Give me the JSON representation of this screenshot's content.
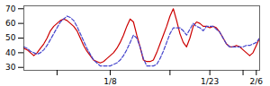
{
  "chart_data": {
    "type": "line",
    "x": [
      0,
      1,
      2,
      3,
      4,
      5,
      6,
      7,
      8,
      9,
      10,
      11,
      12,
      13,
      14,
      15,
      16,
      17,
      18,
      19,
      20,
      21,
      22,
      23,
      24,
      25,
      26,
      27,
      28,
      29,
      30,
      31,
      32,
      33,
      34,
      35,
      36,
      37,
      38,
      39,
      40,
      41,
      42,
      43,
      44,
      45,
      46,
      47,
      48,
      49,
      50,
      51,
      52,
      53,
      54,
      55,
      56,
      57,
      58,
      59,
      60,
      61,
      62,
      63,
      64,
      65,
      66,
      67,
      68,
      69,
      70,
      71
    ],
    "series": [
      {
        "color": "#cc0000",
        "line_style": "solid",
        "values": [
          43,
          42,
          40,
          38,
          40,
          43,
          46,
          50,
          55,
          58,
          60,
          62,
          63,
          62,
          60,
          58,
          55,
          50,
          45,
          41,
          38,
          35,
          34,
          33,
          34,
          36,
          38,
          40,
          43,
          47,
          52,
          58,
          63,
          61,
          52,
          44,
          35,
          34,
          34,
          35,
          40,
          46,
          52,
          58,
          65,
          70,
          62,
          53,
          47,
          44,
          50,
          58,
          61,
          60,
          58,
          58,
          57,
          58,
          57,
          54,
          50,
          46,
          44,
          44,
          45,
          44,
          42,
          40,
          38,
          40,
          45,
          50
        ]
      },
      {
        "color": "#4444cc",
        "line_style": "dashed",
        "values": [
          44,
          43,
          41,
          40,
          39,
          40,
          42,
          45,
          49,
          53,
          57,
          61,
          63,
          65,
          64,
          62,
          58,
          53,
          48,
          43,
          39,
          35,
          33,
          31,
          31,
          31,
          31,
          32,
          33,
          35,
          38,
          42,
          47,
          52,
          50,
          44,
          36,
          31,
          31,
          31,
          32,
          36,
          41,
          47,
          53,
          57,
          57,
          57,
          55,
          52,
          56,
          60,
          58,
          57,
          55,
          58,
          58,
          58,
          56,
          54,
          50,
          46,
          44,
          44,
          44,
          44,
          44,
          45,
          45,
          46,
          47,
          50
        ]
      }
    ],
    "xlim": [
      0,
      71
    ],
    "xticks": [
      {
        "value": 10,
        "label": null
      },
      {
        "value": 26,
        "label": "1/8"
      },
      {
        "value": 44,
        "label": null
      },
      {
        "value": 56,
        "label": "1/23"
      },
      {
        "value": 66,
        "label": null
      },
      {
        "value": 70,
        "label": "2/6"
      }
    ],
    "ylim": [
      28,
      72
    ],
    "yticks": [
      30,
      40,
      50,
      60,
      70
    ],
    "grid": false
  }
}
